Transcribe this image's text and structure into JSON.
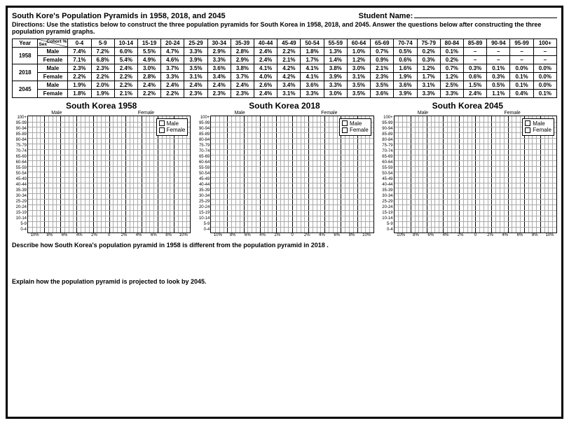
{
  "header": {
    "title": "South Kore's Population Pyramids in 1958, 2018, and 2045",
    "student_name_label": "Student Name:",
    "directions": "Directions: Use the statistics below to construct the three population pyramids for South Korea in 1958, 2018, and 2045. Answer the questions below after constructing the three population pyramid graphs."
  },
  "table": {
    "corner_top": "Cohort %",
    "corner_bottom": "Sex",
    "year_label": "Year",
    "cols": [
      "0-4",
      "5-9",
      "10-14",
      "15-19",
      "20-24",
      "25-29",
      "30-34",
      "35-39",
      "40-44",
      "45-49",
      "50-54",
      "55-59",
      "60-64",
      "65-69",
      "70-74",
      "75-79",
      "80-84",
      "85-89",
      "90-94",
      "95-99",
      "100+"
    ],
    "years": [
      "1958",
      "2018",
      "2045"
    ],
    "sex_labels": [
      "Male",
      "Female"
    ],
    "rows": {
      "1958": {
        "Male": [
          "7.4%",
          "7.2%",
          "6.0%",
          "5.5%",
          "4.7%",
          "3.3%",
          "2.9%",
          "2.8%",
          "2.4%",
          "2.2%",
          "1.8%",
          "1.3%",
          "1.0%",
          "0.7%",
          "0.5%",
          "0.2%",
          "0.1%",
          "–",
          "–",
          "–",
          "–"
        ],
        "Female": [
          "7.1%",
          "6.8%",
          "5.4%",
          "4.9%",
          "4.6%",
          "3.9%",
          "3.3%",
          "2.9%",
          "2.4%",
          "2.1%",
          "1.7%",
          "1.4%",
          "1.2%",
          "0.9%",
          "0.6%",
          "0.3%",
          "0.2%",
          "–",
          "–",
          "–",
          "–"
        ]
      },
      "2018": {
        "Male": [
          "2.3%",
          "2.3%",
          "2.4%",
          "3.0%",
          "3.7%",
          "3.5%",
          "3.6%",
          "3.8%",
          "4.1%",
          "4.2%",
          "4.1%",
          "3.8%",
          "3.0%",
          "2.1%",
          "1.6%",
          "1.2%",
          "0.7%",
          "0.3%",
          "0.1%",
          "0.0%",
          "0.0%"
        ],
        "Female": [
          "2.2%",
          "2.2%",
          "2.2%",
          "2.8%",
          "3.3%",
          "3.1%",
          "3.4%",
          "3.7%",
          "4.0%",
          "4.2%",
          "4.1%",
          "3.9%",
          "3.1%",
          "2.3%",
          "1.9%",
          "1.7%",
          "1.2%",
          "0.6%",
          "0.3%",
          "0.1%",
          "0.0%"
        ]
      },
      "2045": {
        "Male": [
          "1.9%",
          "2.0%",
          "2.2%",
          "2.4%",
          "2.4%",
          "2.4%",
          "2.4%",
          "2.4%",
          "2.6%",
          "3.4%",
          "3.6%",
          "3.3%",
          "3.5%",
          "3.5%",
          "3.6%",
          "3.1%",
          "2.5%",
          "1.5%",
          "0.5%",
          "0.1%",
          "0.0%"
        ],
        "Female": [
          "1.8%",
          "1.9%",
          "2.1%",
          "2.2%",
          "2.2%",
          "2.3%",
          "2.3%",
          "2.3%",
          "2.4%",
          "3.1%",
          "3.3%",
          "3.0%",
          "3.5%",
          "3.6%",
          "3.9%",
          "3.3%",
          "3.3%",
          "2.4%",
          "1.1%",
          "0.4%",
          "0.1%"
        ]
      }
    }
  },
  "pyramids": {
    "age_labels": [
      "100+",
      "95-99",
      "90-94",
      "85-89",
      "80-84",
      "75-79",
      "70-74",
      "65-69",
      "60-64",
      "55-59",
      "50-54",
      "45-49",
      "40-44",
      "35-39",
      "30-34",
      "25-29",
      "20-24",
      "15-19",
      "10-14",
      "5-9",
      "0-4"
    ],
    "xticks": [
      "10%",
      "8%",
      "6%",
      "4%",
      "2%",
      "0",
      "2%",
      "4%",
      "6%",
      "8%",
      "10%"
    ],
    "sub_male": "Male",
    "sub_female": "Female",
    "legend_male": "Male",
    "legend_female": "Female",
    "titles": [
      "South Korea 1958",
      "South Korea 2018",
      "South Korea 2045"
    ]
  },
  "questions": {
    "q1": "Describe how South Korea's population pyramid in 1958 is different from the population pyramid in 2018 .",
    "q2": "Explain how the population pyramid is projected to look by 2045."
  },
  "style": {
    "grid_minor": "#aaaaaa",
    "grid_major": "#000000",
    "font_family": "Arial"
  }
}
